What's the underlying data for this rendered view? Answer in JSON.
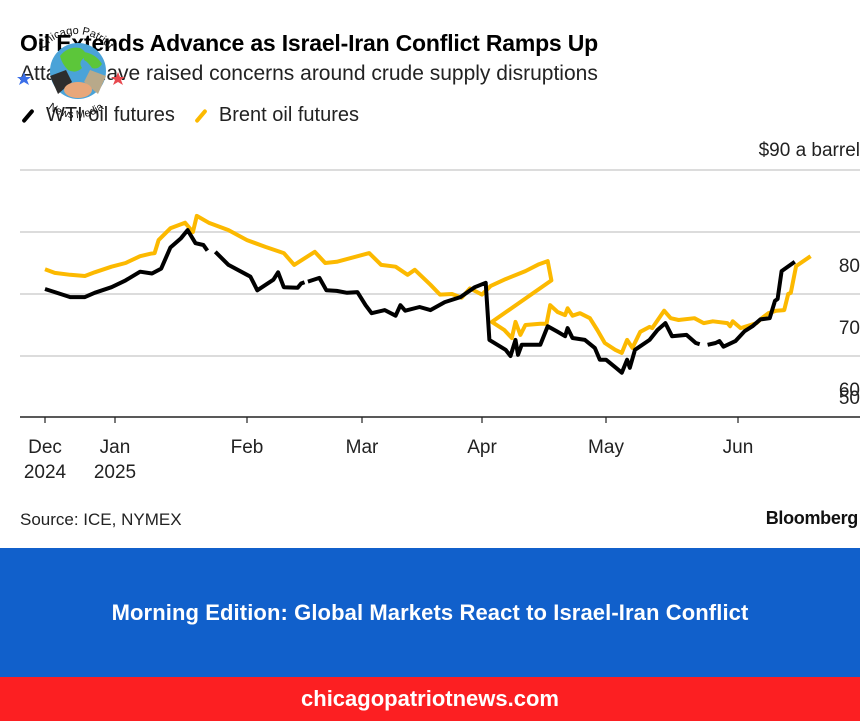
{
  "header": {
    "title": "Oil Extends Advance as Israel-Iran Conflict Ramps Up",
    "subtitle": "Attacks have raised concerns around crude supply disruptions"
  },
  "watermark": {
    "top_text": "Chicago Patriot",
    "bottom_text": "News Media",
    "icon": "globe-handshake-icon",
    "star_left_color": "#3a6ee8",
    "star_right_color": "#e8484e"
  },
  "chart_data": {
    "type": "line",
    "title": "Oil Extends Advance as Israel-Iran Conflict Ramps Up",
    "subtitle": "Attacks have raised concerns around crude supply disruptions",
    "xlabel": "",
    "ylabel": "$ a barrel",
    "unit_label": "$90 a barrel",
    "ylim": [
      50,
      90
    ],
    "yticks": [
      50,
      60,
      70,
      80,
      90
    ],
    "ytick_labels": [
      "50",
      "60",
      "70",
      "80",
      "$90 a barrel"
    ],
    "grid": true,
    "legend_position": "top-left",
    "x_unit": "months since 2024-12-01",
    "xticks": [
      {
        "x": 0,
        "label": "Dec",
        "sublabel": "2024"
      },
      {
        "x": 1,
        "label": "Jan",
        "sublabel": "2025"
      },
      {
        "x": 2,
        "label": "Feb",
        "sublabel": ""
      },
      {
        "x": 3,
        "label": "Mar",
        "sublabel": ""
      },
      {
        "x": 4,
        "label": "Apr",
        "sublabel": ""
      },
      {
        "x": 5,
        "label": "May",
        "sublabel": ""
      },
      {
        "x": 6,
        "label": "Jun",
        "sublabel": ""
      }
    ],
    "series": [
      {
        "name": "WTI oil futures",
        "color": "#000000",
        "points": [
          [
            0.0,
            70.8
          ],
          [
            0.14,
            70.3
          ],
          [
            0.36,
            69.5
          ],
          [
            0.57,
            69.5
          ],
          [
            0.71,
            70.2
          ],
          [
            0.95,
            71.1
          ],
          [
            1.08,
            72.2
          ],
          [
            1.19,
            73.6
          ],
          [
            1.28,
            73.3
          ],
          [
            1.35,
            74.1
          ],
          [
            1.42,
            77.5
          ],
          [
            1.5,
            79.0
          ],
          [
            1.55,
            80.3
          ],
          [
            1.61,
            78.2
          ],
          [
            1.67,
            77.9
          ],
          [
            1.7,
            77.0
          ],
          null,
          [
            1.76,
            76.8
          ],
          [
            1.86,
            74.7
          ],
          [
            2.0,
            73.1
          ],
          [
            2.03,
            72.8
          ],
          [
            2.09,
            70.6
          ],
          [
            2.23,
            72.3
          ],
          [
            2.27,
            73.5
          ],
          [
            2.32,
            71.1
          ],
          [
            2.44,
            71.0
          ],
          [
            2.47,
            71.7
          ],
          [
            2.5,
            71.9
          ],
          null,
          [
            2.53,
            72.0
          ],
          [
            2.63,
            72.6
          ],
          [
            2.69,
            70.6
          ],
          [
            2.78,
            70.5
          ],
          [
            2.87,
            70.2
          ],
          [
            2.96,
            70.3
          ],
          [
            3.03,
            68.2
          ],
          [
            3.08,
            66.9
          ],
          [
            3.19,
            67.4
          ],
          [
            3.28,
            66.5
          ],
          [
            3.32,
            68.2
          ],
          [
            3.36,
            67.3
          ],
          [
            3.48,
            67.9
          ],
          [
            3.57,
            67.4
          ],
          [
            3.69,
            68.7
          ],
          [
            3.82,
            69.5
          ],
          [
            3.94,
            71.1
          ],
          [
            4.03,
            71.8
          ],
          [
            4.06,
            62.6
          ],
          [
            4.19,
            61.0
          ],
          [
            4.23,
            60.0
          ],
          [
            4.27,
            62.6
          ],
          [
            4.29,
            60.2
          ],
          [
            4.32,
            61.8
          ],
          [
            4.47,
            61.8
          ],
          [
            4.53,
            64.8
          ],
          [
            4.61,
            63.9
          ],
          [
            4.67,
            63.2
          ],
          [
            4.69,
            64.5
          ],
          [
            4.73,
            62.9
          ],
          [
            4.83,
            62.6
          ],
          [
            4.91,
            61.3
          ],
          [
            4.95,
            59.4
          ],
          [
            5.0,
            59.4
          ],
          [
            5.07,
            58.2
          ],
          [
            5.12,
            57.3
          ],
          [
            5.16,
            59.4
          ],
          [
            5.18,
            58.1
          ],
          [
            5.22,
            61.0
          ],
          [
            5.33,
            62.6
          ],
          [
            5.39,
            64.2
          ],
          [
            5.45,
            65.3
          ],
          [
            5.5,
            63.2
          ],
          [
            5.61,
            63.4
          ],
          [
            5.68,
            62.1
          ],
          [
            5.71,
            61.9
          ],
          null,
          [
            5.77,
            61.8
          ],
          [
            5.83,
            62.1
          ],
          [
            5.86,
            62.4
          ],
          [
            5.89,
            61.5
          ],
          [
            5.98,
            62.4
          ],
          [
            6.05,
            64.0
          ],
          [
            6.11,
            64.8
          ],
          [
            6.17,
            65.9
          ],
          [
            6.24,
            66.1
          ],
          [
            6.28,
            68.9
          ],
          [
            6.3,
            69.2
          ],
          [
            6.33,
            73.7
          ],
          [
            6.43,
            75.2
          ]
        ]
      },
      {
        "name": "Brent oil futures",
        "color": "#fcb900",
        "points": [
          [
            0.0,
            74.0
          ],
          [
            0.14,
            73.4
          ],
          [
            0.36,
            73.1
          ],
          [
            0.57,
            72.9
          ],
          [
            0.71,
            73.5
          ],
          [
            0.95,
            74.4
          ],
          [
            1.08,
            75.0
          ],
          [
            1.19,
            76.1
          ],
          [
            1.27,
            76.5
          ],
          [
            1.3,
            76.6
          ],
          [
            1.33,
            78.7
          ],
          [
            1.42,
            80.6
          ],
          [
            1.53,
            81.5
          ],
          [
            1.59,
            80.0
          ],
          [
            1.62,
            82.6
          ],
          [
            1.71,
            81.5
          ],
          [
            1.86,
            80.3
          ],
          [
            2.0,
            78.7
          ],
          [
            2.16,
            77.6
          ],
          [
            2.32,
            76.6
          ],
          [
            2.41,
            74.7
          ],
          [
            2.59,
            76.8
          ],
          [
            2.68,
            75.0
          ],
          [
            2.78,
            75.2
          ],
          [
            3.06,
            76.6
          ],
          [
            3.16,
            74.7
          ],
          [
            3.28,
            74.4
          ],
          [
            3.38,
            73.1
          ],
          [
            3.44,
            73.9
          ],
          [
            3.57,
            71.5
          ],
          [
            3.65,
            69.9
          ],
          [
            3.75,
            70.0
          ],
          [
            3.83,
            69.4
          ],
          [
            3.9,
            70.9
          ],
          [
            4.0,
            69.9
          ],
          [
            4.07,
            71.3
          ],
          [
            4.19,
            72.4
          ],
          [
            4.35,
            73.7
          ],
          [
            4.46,
            74.8
          ],
          [
            4.53,
            75.3
          ],
          [
            4.56,
            72.2
          ],
          [
            4.08,
            65.5
          ],
          [
            4.18,
            64.2
          ],
          [
            4.24,
            62.9
          ],
          [
            4.27,
            65.5
          ],
          [
            4.31,
            63.4
          ],
          [
            4.35,
            65.0
          ],
          [
            4.47,
            65.2
          ],
          [
            4.52,
            65.2
          ],
          [
            4.55,
            68.2
          ],
          [
            4.61,
            67.1
          ],
          [
            4.67,
            66.6
          ],
          [
            4.69,
            67.7
          ],
          [
            4.73,
            66.5
          ],
          [
            4.79,
            66.9
          ],
          [
            4.87,
            66.1
          ],
          [
            4.93,
            64.2
          ],
          [
            4.99,
            62.1
          ],
          [
            5.07,
            61.0
          ],
          [
            5.12,
            60.5
          ],
          [
            5.16,
            62.6
          ],
          [
            5.2,
            61.3
          ],
          [
            5.26,
            63.9
          ],
          [
            5.33,
            64.7
          ],
          [
            5.35,
            64.5
          ],
          [
            5.44,
            67.3
          ],
          [
            5.49,
            66.1
          ],
          [
            5.55,
            65.8
          ],
          [
            5.67,
            66.1
          ],
          [
            5.74,
            65.3
          ],
          [
            5.81,
            65.6
          ],
          [
            5.92,
            65.3
          ],
          [
            5.94,
            64.8
          ],
          [
            5.96,
            65.6
          ],
          [
            6.02,
            64.5
          ],
          [
            6.14,
            65.3
          ],
          [
            6.18,
            66.1
          ],
          [
            6.23,
            66.9
          ],
          [
            6.29,
            67.3
          ],
          [
            6.35,
            67.4
          ],
          [
            6.38,
            70.0
          ],
          [
            6.4,
            70.2
          ],
          [
            6.44,
            74.5
          ],
          [
            6.55,
            76.1
          ]
        ]
      }
    ]
  },
  "footer": {
    "source": "Source: ICE, NYMEX",
    "brand": "Bloomberg"
  },
  "banner": {
    "headline": "Morning Edition: Global Markets React to Israel-Iran Conflict",
    "background": "#1160cb"
  },
  "site": {
    "url_text": "chicagopatriotnews.com",
    "background": "#fc1f22"
  }
}
